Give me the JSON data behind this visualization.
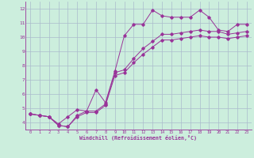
{
  "xlabel": "Windchill (Refroidissement éolien,°C)",
  "background_color": "#cceedd",
  "grid_color": "#aabbcc",
  "line_color": "#993399",
  "xlim": [
    -0.5,
    23.5
  ],
  "ylim": [
    3.5,
    12.5
  ],
  "xticks": [
    0,
    1,
    2,
    3,
    4,
    5,
    6,
    7,
    8,
    9,
    10,
    11,
    12,
    13,
    14,
    15,
    16,
    17,
    18,
    19,
    20,
    21,
    22,
    23
  ],
  "yticks": [
    4,
    5,
    6,
    7,
    8,
    9,
    10,
    11,
    12
  ],
  "series": {
    "line1": {
      "x": [
        0,
        1,
        2,
        3,
        4,
        5,
        6,
        7,
        8,
        9,
        10,
        11,
        12,
        13,
        14,
        15,
        16,
        17,
        18,
        19,
        20,
        21,
        22,
        23
      ],
      "y": [
        4.6,
        4.5,
        4.4,
        3.9,
        4.4,
        4.9,
        4.8,
        6.3,
        5.4,
        7.6,
        10.1,
        10.9,
        10.9,
        11.9,
        11.5,
        11.4,
        11.4,
        11.4,
        11.9,
        11.4,
        10.5,
        10.4,
        10.9,
        10.9
      ]
    },
    "line2": {
      "x": [
        0,
        1,
        2,
        3,
        4,
        5,
        6,
        7,
        8,
        9,
        10,
        11,
        12,
        13,
        14,
        15,
        16,
        17,
        18,
        19,
        20,
        21,
        22,
        23
      ],
      "y": [
        4.6,
        4.5,
        4.4,
        3.8,
        3.7,
        4.5,
        4.8,
        4.8,
        5.3,
        7.5,
        7.7,
        8.5,
        9.2,
        9.7,
        10.2,
        10.2,
        10.3,
        10.4,
        10.5,
        10.4,
        10.4,
        10.2,
        10.3,
        10.4
      ]
    },
    "line3": {
      "x": [
        0,
        1,
        2,
        3,
        4,
        5,
        6,
        7,
        8,
        9,
        10,
        11,
        12,
        13,
        14,
        15,
        16,
        17,
        18,
        19,
        20,
        21,
        22,
        23
      ],
      "y": [
        4.6,
        4.5,
        4.4,
        3.8,
        3.7,
        4.4,
        4.7,
        4.7,
        5.2,
        7.3,
        7.5,
        8.2,
        8.8,
        9.3,
        9.8,
        9.8,
        9.9,
        10.0,
        10.1,
        10.0,
        10.0,
        9.9,
        10.0,
        10.1
      ]
    }
  }
}
